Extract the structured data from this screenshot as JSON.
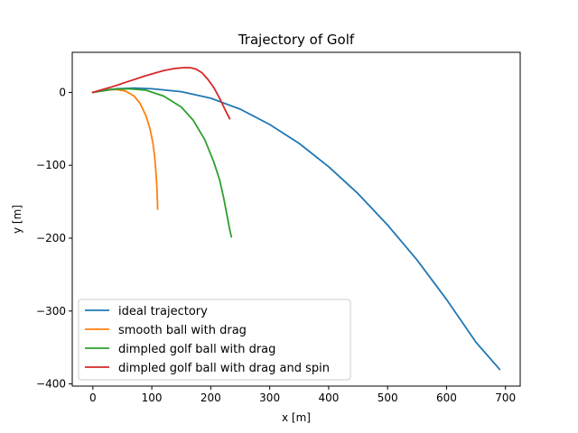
{
  "chart_data": {
    "type": "line",
    "title": "Trajectory of Golf",
    "xlabel": "x [m]",
    "ylabel": "y [m]",
    "xlim": [
      -35,
      725
    ],
    "ylim": [
      -403,
      55
    ],
    "xticks": [
      0,
      100,
      200,
      300,
      400,
      500,
      600,
      700
    ],
    "yticks": [
      -400,
      -300,
      -200,
      -100,
      0
    ],
    "tick_labels": {
      "x": [
        "0",
        "100",
        "200",
        "300",
        "400",
        "500",
        "600",
        "700"
      ],
      "y": [
        "−400",
        "−300",
        "−200",
        "−100",
        "0"
      ]
    },
    "grid": false,
    "legend_position": "lower-left",
    "series": [
      {
        "name": "ideal trajectory",
        "color": "#1f77b4",
        "x": [
          0,
          40,
          70,
          100,
          150,
          200,
          250,
          300,
          350,
          400,
          450,
          500,
          550,
          600,
          650,
          690
        ],
        "y": [
          0,
          5,
          6,
          5,
          1,
          -8,
          -23,
          -44,
          -70,
          -102,
          -139,
          -182,
          -230,
          -284,
          -343,
          -380
        ]
      },
      {
        "name": "smooth ball with drag",
        "color": "#ff7f0e",
        "x": [
          0,
          20,
          40,
          55,
          70,
          80,
          90,
          97,
          102,
          105,
          107,
          108.5,
          109.5,
          110
        ],
        "y": [
          0,
          3,
          4,
          2,
          -5,
          -15,
          -32,
          -50,
          -70,
          -90,
          -110,
          -130,
          -148,
          -160
        ]
      },
      {
        "name": "dimpled golf ball with drag",
        "color": "#2ca02c",
        "x": [
          0,
          30,
          60,
          90,
          120,
          150,
          170,
          190,
          205,
          215,
          222,
          228,
          232,
          235
        ],
        "y": [
          0,
          4,
          5,
          3,
          -5,
          -20,
          -38,
          -65,
          -95,
          -120,
          -145,
          -170,
          -188,
          -198
        ]
      },
      {
        "name": "dimpled golf ball with drag and spin",
        "color": "#d62728",
        "x": [
          0,
          30,
          60,
          90,
          120,
          140,
          155,
          165,
          175,
          185,
          195,
          205,
          215,
          225,
          232
        ],
        "y": [
          0,
          7,
          15,
          23,
          30,
          33,
          34,
          34,
          32,
          27,
          18,
          7,
          -8,
          -25,
          -36
        ]
      }
    ]
  }
}
